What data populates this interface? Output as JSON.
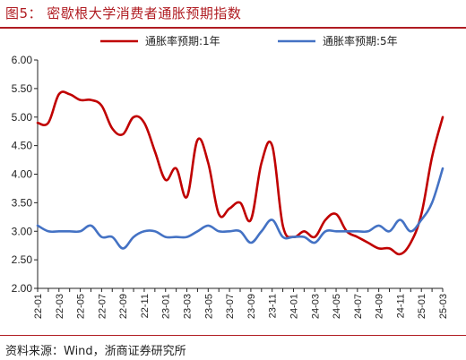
{
  "figure": {
    "title": "图5：  密歇根大学消费者通胀预期指数",
    "source": "资料来源：Wind，浙商证券研究所"
  },
  "colors": {
    "accent": "#b01c22",
    "series1": "#c00000",
    "series2": "#4472c4"
  },
  "chart_data": {
    "type": "line",
    "title": "",
    "xlabel": "",
    "ylabel": "",
    "ylim": [
      2.0,
      6.0
    ],
    "yticks": [
      "2.00",
      "2.50",
      "3.00",
      "3.50",
      "4.00",
      "4.50",
      "5.00",
      "5.50",
      "6.00"
    ],
    "grid": false,
    "legend": "top",
    "xtick_labels": [
      "22-01",
      "22-03",
      "22-05",
      "22-07",
      "22-09",
      "22-11",
      "23-01",
      "23-03",
      "23-05",
      "23-07",
      "23-09",
      "23-11",
      "24-01",
      "24-03",
      "24-05",
      "24-07",
      "24-09",
      "24-11",
      "25-01",
      "25-03"
    ],
    "x": [
      "22-01",
      "22-02",
      "22-03",
      "22-04",
      "22-05",
      "22-06",
      "22-07",
      "22-08",
      "22-09",
      "22-10",
      "22-11",
      "22-12",
      "23-01",
      "23-02",
      "23-03",
      "23-04",
      "23-05",
      "23-06",
      "23-07",
      "23-08",
      "23-09",
      "23-10",
      "23-11",
      "23-12",
      "24-01",
      "24-02",
      "24-03",
      "24-04",
      "24-05",
      "24-06",
      "24-07",
      "24-08",
      "24-09",
      "24-10",
      "24-11",
      "24-12",
      "25-01",
      "25-02",
      "25-03"
    ],
    "series": [
      {
        "name": "通胀率预期:1年",
        "color": "#c00000",
        "values": [
          4.9,
          4.9,
          5.4,
          5.4,
          5.3,
          5.3,
          5.2,
          4.8,
          4.7,
          5.0,
          4.9,
          4.4,
          3.9,
          4.1,
          3.6,
          4.6,
          4.2,
          3.3,
          3.4,
          3.5,
          3.2,
          4.2,
          4.5,
          3.1,
          2.9,
          3.0,
          2.9,
          3.2,
          3.3,
          3.0,
          2.9,
          2.8,
          2.7,
          2.7,
          2.6,
          2.8,
          3.3,
          4.3,
          5.0
        ]
      },
      {
        "name": "通胀率预期:5年",
        "color": "#4472c4",
        "values": [
          3.1,
          3.0,
          3.0,
          3.0,
          3.0,
          3.1,
          2.9,
          2.9,
          2.7,
          2.9,
          3.0,
          3.0,
          2.9,
          2.9,
          2.9,
          3.0,
          3.1,
          3.0,
          3.0,
          3.0,
          2.8,
          3.0,
          3.2,
          2.9,
          2.9,
          2.9,
          2.8,
          3.0,
          3.0,
          3.0,
          3.0,
          3.0,
          3.1,
          3.0,
          3.2,
          3.0,
          3.2,
          3.5,
          4.1
        ]
      }
    ]
  }
}
